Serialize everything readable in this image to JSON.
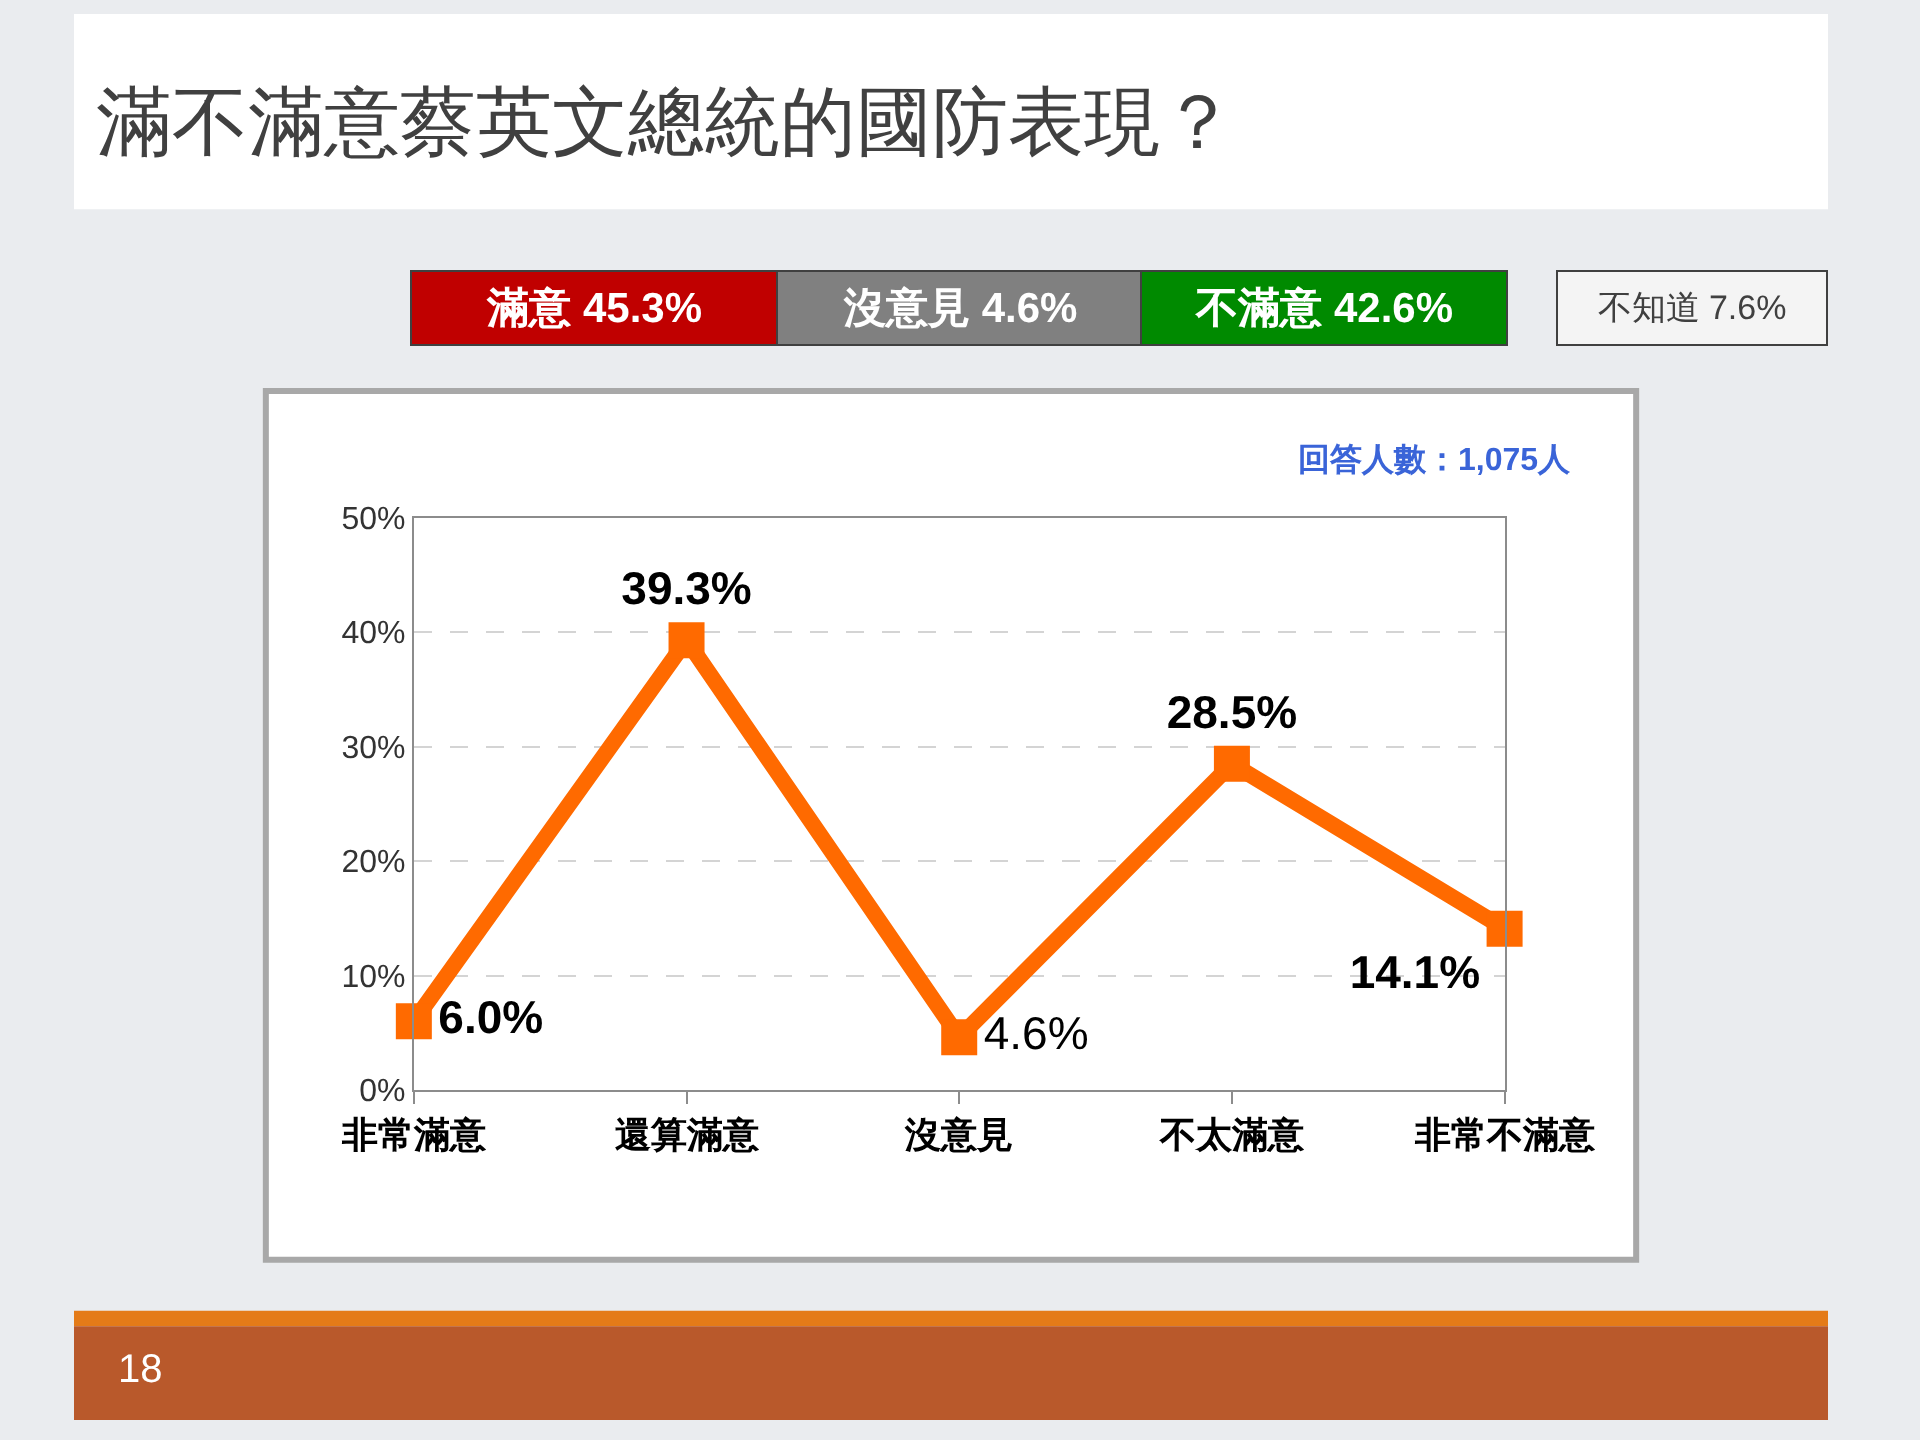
{
  "chart_data": {
    "type": "line",
    "title": "滿不滿意蔡英文總統的國防表現？",
    "categories": [
      "非常滿意",
      "還算滿意",
      "沒意見",
      "不太滿意",
      "非常不滿意"
    ],
    "series": [
      {
        "color": "#ff6a00",
        "values": [
          6.0,
          39.3,
          4.6,
          28.5,
          14.1
        ],
        "value_labels": [
          "6.0%",
          "39.3%",
          "4.6%",
          "28.5%",
          "14.1%"
        ]
      }
    ],
    "ylim": [
      0,
      50
    ],
    "yticks": [
      {
        "value": 0,
        "label": "0%"
      },
      {
        "value": 10,
        "label": "10%"
      },
      {
        "value": 20,
        "label": "20%"
      },
      {
        "value": 30,
        "label": "30%"
      },
      {
        "value": 40,
        "label": "40%"
      },
      {
        "value": 50,
        "label": "50%"
      }
    ],
    "grid": "y",
    "legend": false,
    "marker": "square",
    "line_style": "solid",
    "annotations": [
      "滿意 45.3%",
      "沒意見 4.6%",
      "不滿意 42.6%",
      "不知道 7.6%",
      "回答人數：1,075人",
      "18"
    ]
  }
}
